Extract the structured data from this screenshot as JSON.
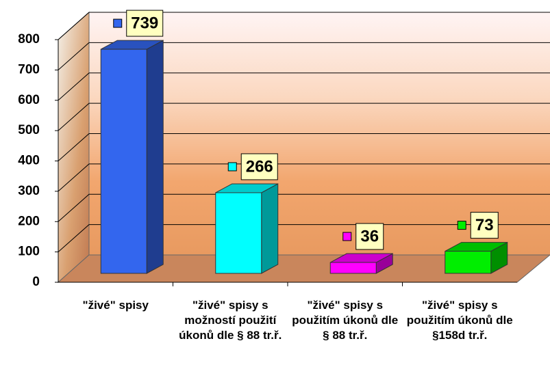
{
  "chart_data": {
    "type": "bar3d",
    "categories": [
      "\"živé\" spisy",
      "\"živé\" spisy s možností použití úkonů dle § 88 tr.ř.",
      "\"živé\" spisy s použitím úkonů dle § 88 tr.ř.",
      "\"živé\" spisy s použitím úkonů dle §158d tr.ř."
    ],
    "values": [
      739,
      266,
      36,
      73
    ],
    "colors": [
      "#3366ee",
      "#00ffff",
      "#ff00ff",
      "#00ee00"
    ],
    "ylim": [
      0,
      800
    ],
    "yticks": [
      0,
      100,
      200,
      300,
      400,
      500,
      600,
      700,
      800
    ],
    "grid": true
  }
}
